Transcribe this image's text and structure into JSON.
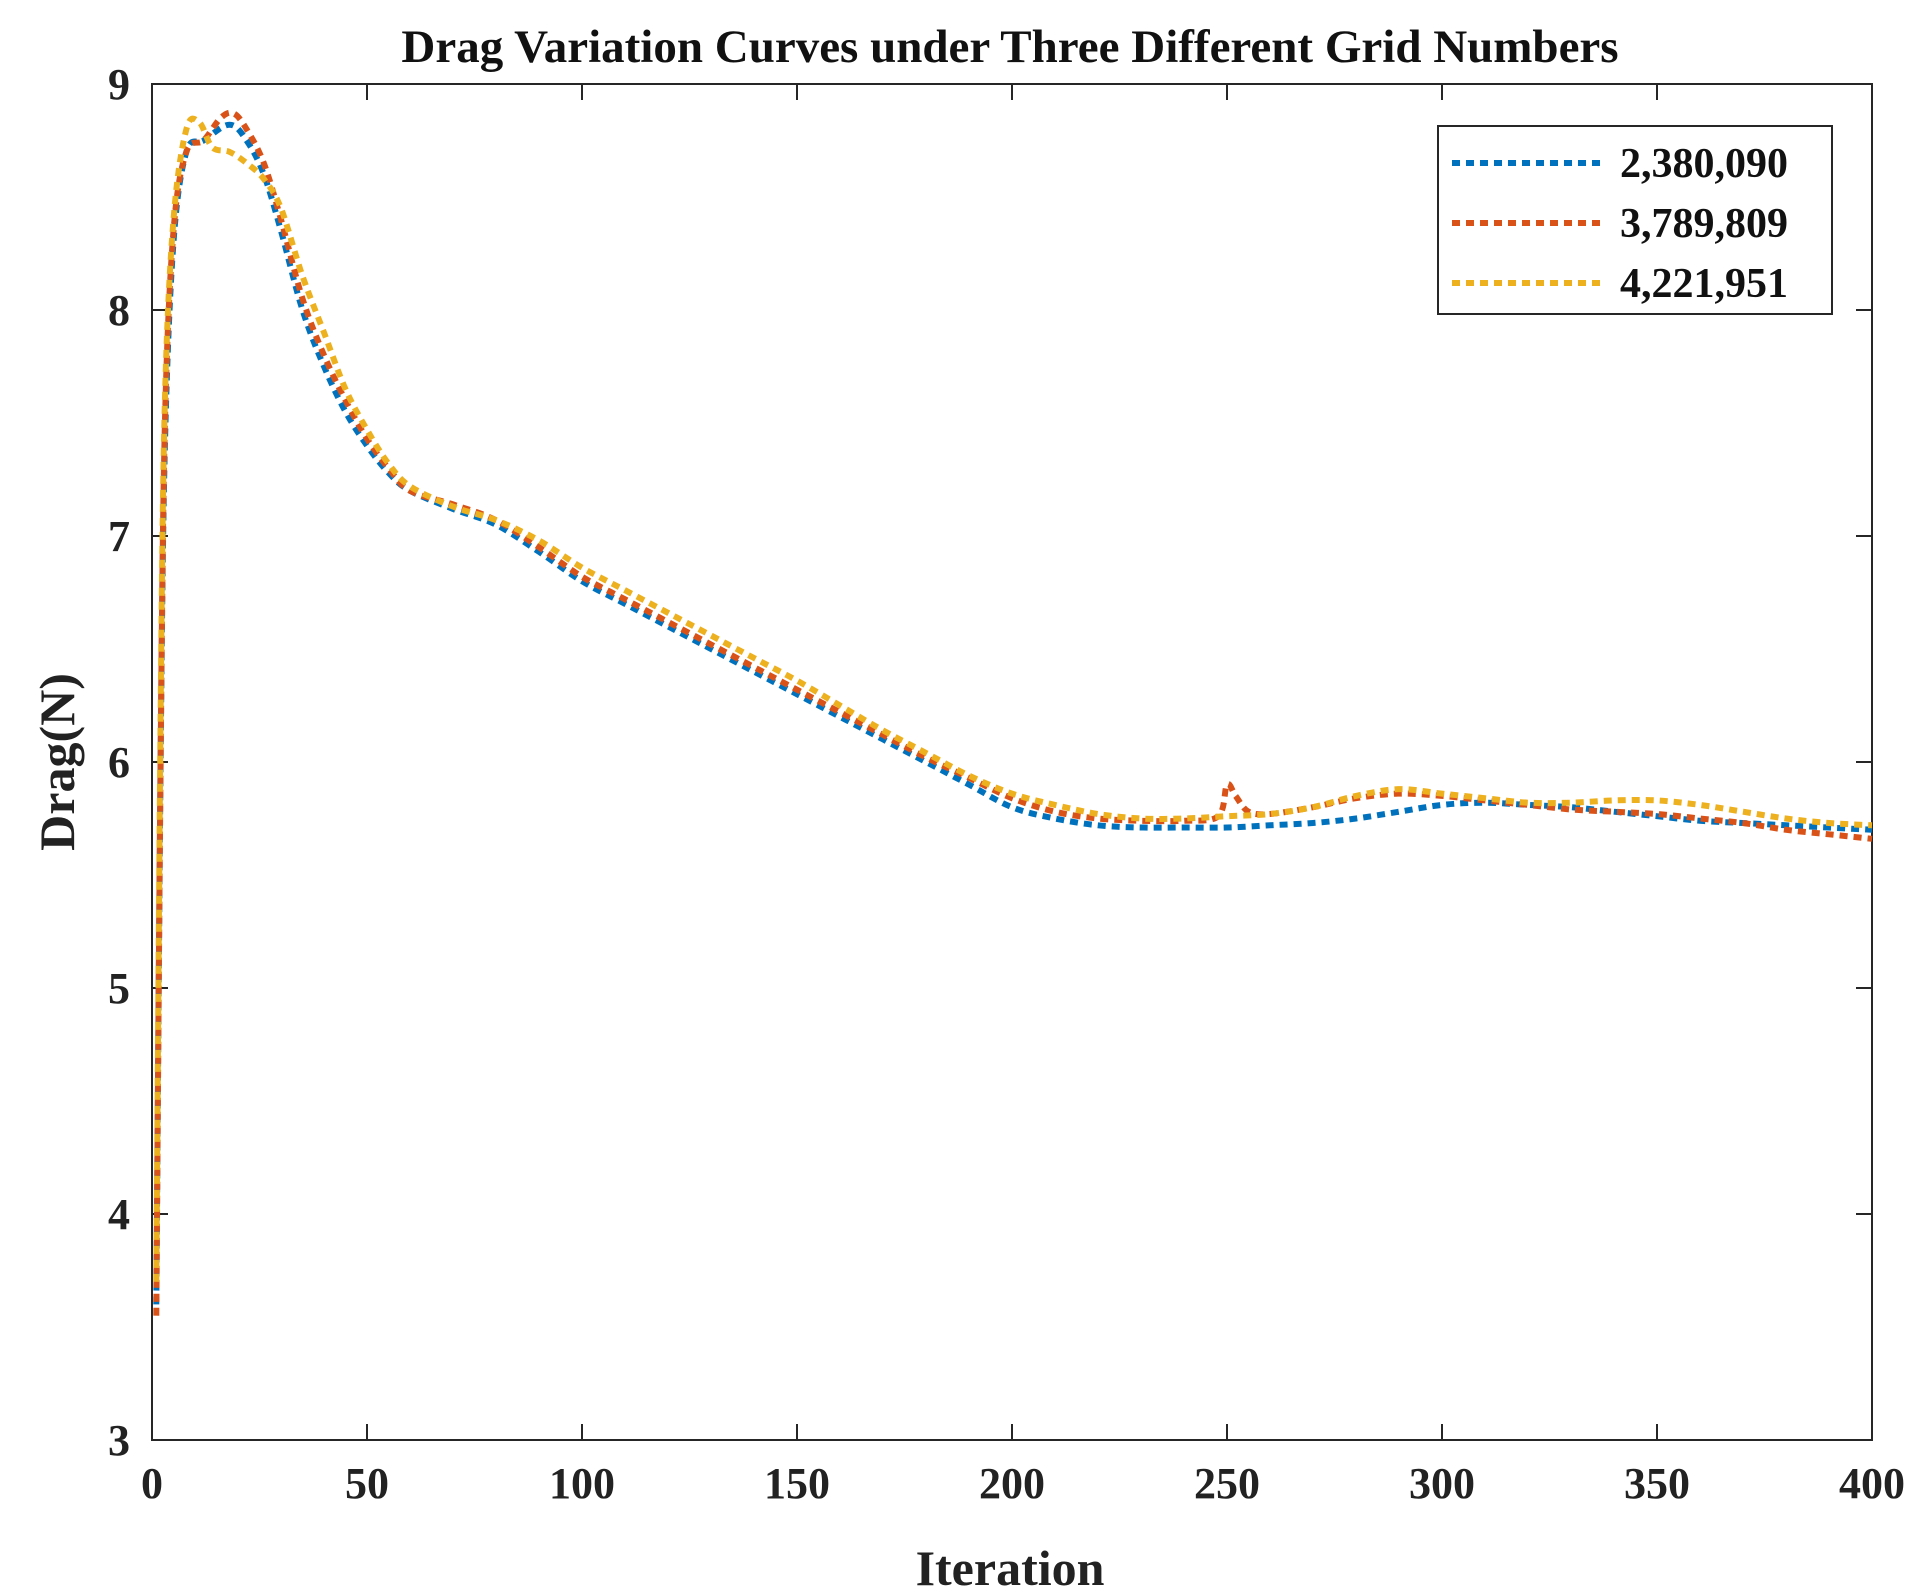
{
  "chart_data": {
    "type": "line",
    "title": "Drag Variation Curves under Three Different Grid Numbers",
    "xlabel": "Iteration",
    "ylabel": "Drag(N)",
    "xlim": [
      0,
      400
    ],
    "ylim": [
      3,
      9
    ],
    "xticks": [
      0,
      50,
      100,
      150,
      200,
      250,
      300,
      350,
      400
    ],
    "yticks": [
      3,
      4,
      5,
      6,
      7,
      8,
      9
    ],
    "xtick_labels": [
      "0",
      "50",
      "100",
      "150",
      "200",
      "250",
      "300",
      "350",
      "400"
    ],
    "ytick_labels": [
      "3",
      "4",
      "5",
      "6",
      "7",
      "8",
      "9"
    ],
    "legend_position": "top-right",
    "grid": false,
    "series": [
      {
        "name": "2,380,090",
        "color": "#0072BD",
        "x": [
          1,
          2,
          3,
          5,
          8,
          12,
          18,
          22,
          26,
          30,
          35,
          40,
          45,
          50,
          55,
          60,
          70,
          80,
          90,
          100,
          110,
          120,
          130,
          140,
          150,
          160,
          170,
          180,
          190,
          200,
          210,
          220,
          230,
          240,
          250,
          260,
          270,
          280,
          290,
          300,
          310,
          320,
          330,
          340,
          350,
          360,
          370,
          380,
          390,
          400
        ],
        "y": [
          3.6,
          6.0,
          7.4,
          8.3,
          8.7,
          8.75,
          8.82,
          8.75,
          8.6,
          8.35,
          8.0,
          7.75,
          7.55,
          7.4,
          7.28,
          7.2,
          7.12,
          7.05,
          6.93,
          6.8,
          6.7,
          6.6,
          6.5,
          6.4,
          6.3,
          6.2,
          6.1,
          6.0,
          5.9,
          5.8,
          5.75,
          5.72,
          5.71,
          5.71,
          5.71,
          5.72,
          5.73,
          5.75,
          5.78,
          5.81,
          5.82,
          5.81,
          5.8,
          5.78,
          5.76,
          5.74,
          5.73,
          5.72,
          5.71,
          5.7
        ]
      },
      {
        "name": "3,789,809",
        "color": "#D95319",
        "x": [
          1,
          2,
          3,
          5,
          8,
          12,
          16,
          19,
          22,
          26,
          30,
          35,
          40,
          45,
          50,
          55,
          60,
          70,
          80,
          90,
          100,
          110,
          120,
          130,
          140,
          150,
          160,
          170,
          180,
          190,
          200,
          210,
          220,
          230,
          240,
          248,
          250,
          252,
          255,
          260,
          270,
          280,
          290,
          300,
          310,
          320,
          330,
          340,
          350,
          360,
          370,
          380,
          390,
          400
        ],
        "y": [
          3.55,
          6.0,
          7.5,
          8.35,
          8.7,
          8.75,
          8.85,
          8.87,
          8.8,
          8.65,
          8.4,
          8.05,
          7.8,
          7.6,
          7.43,
          7.3,
          7.2,
          7.14,
          7.07,
          6.95,
          6.82,
          6.72,
          6.62,
          6.52,
          6.42,
          6.32,
          6.22,
          6.12,
          6.02,
          5.93,
          5.84,
          5.78,
          5.75,
          5.74,
          5.74,
          5.76,
          5.9,
          5.85,
          5.78,
          5.77,
          5.8,
          5.84,
          5.86,
          5.85,
          5.83,
          5.81,
          5.79,
          5.78,
          5.77,
          5.75,
          5.73,
          5.7,
          5.68,
          5.66
        ]
      },
      {
        "name": "4,221,951",
        "color": "#EDB120",
        "x": [
          1,
          2,
          3,
          5,
          8,
          11,
          14,
          18,
          22,
          26,
          30,
          35,
          40,
          45,
          50,
          55,
          60,
          70,
          80,
          90,
          100,
          110,
          120,
          130,
          140,
          150,
          160,
          170,
          180,
          190,
          200,
          210,
          220,
          230,
          240,
          250,
          260,
          270,
          280,
          290,
          300,
          310,
          320,
          330,
          340,
          350,
          360,
          370,
          380,
          390,
          400
        ],
        "y": [
          3.7,
          6.2,
          7.6,
          8.4,
          8.8,
          8.83,
          8.72,
          8.7,
          8.65,
          8.58,
          8.45,
          8.15,
          7.9,
          7.65,
          7.47,
          7.32,
          7.22,
          7.13,
          7.07,
          6.98,
          6.86,
          6.76,
          6.66,
          6.56,
          6.46,
          6.36,
          6.25,
          6.14,
          6.04,
          5.94,
          5.86,
          5.81,
          5.77,
          5.75,
          5.75,
          5.76,
          5.77,
          5.8,
          5.85,
          5.88,
          5.86,
          5.84,
          5.82,
          5.82,
          5.83,
          5.83,
          5.81,
          5.78,
          5.75,
          5.73,
          5.72
        ]
      }
    ]
  }
}
